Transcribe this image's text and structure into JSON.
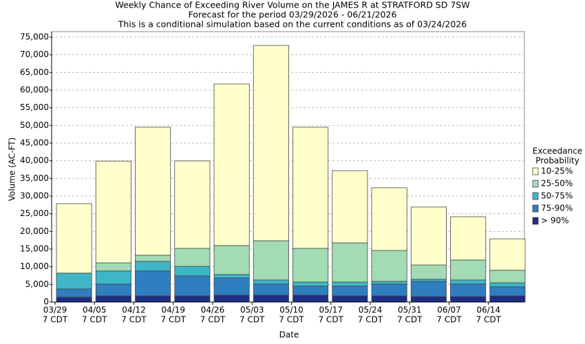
{
  "chart_data": {
    "type": "stacked-bar",
    "title": "Weekly Chance of Exceeding River Volume on the JAMES R at STRATFORD SD 7SW",
    "subtitle": [
      "Forecast for the period 03/29/2026 - 06/21/2026",
      "This is a conditional simulation based on the current conditions as of 03/24/2026"
    ],
    "x_label": "Date",
    "y_label": "Volume (AC-FT)",
    "categories": [
      "03/29",
      "04/05",
      "04/12",
      "04/19",
      "04/26",
      "05/03",
      "05/10",
      "05/17",
      "05/24",
      "05/31",
      "06/07",
      "06/14"
    ],
    "x_tick_sublabel": "7 CDT",
    "legend_title": [
      "Exceedance",
      "Probability"
    ],
    "series": [
      {
        "name": "> 90%",
        "color": "#1f2d86",
        "values": [
          1400,
          1750,
          1750,
          1750,
          1950,
          1950,
          1950,
          1750,
          1750,
          1550,
          1550,
          1750
        ]
      },
      {
        "name": "75-90%",
        "color": "#2f7ec0",
        "values": [
          2300,
          3350,
          7050,
          5650,
          4850,
          3150,
          2550,
          2750,
          3350,
          4300,
          3550,
          2550
        ]
      },
      {
        "name": "50-75%",
        "color": "#3fb6c8",
        "values": [
          4500,
          3700,
          2700,
          2700,
          1000,
          1150,
          1150,
          1150,
          750,
          600,
          1150,
          1150
        ]
      },
      {
        "name": "25-50%",
        "color": "#a3dbb4",
        "values": [
          0,
          2300,
          1750,
          5100,
          8200,
          11100,
          9550,
          11100,
          8750,
          4050,
          5650,
          3550
        ]
      },
      {
        "name": "10-25%",
        "color": "#ffffcc",
        "values": [
          19650,
          28800,
          36250,
          24750,
          45750,
          55300,
          34300,
          20450,
          17750,
          16400,
          12250,
          8900
        ]
      }
    ],
    "ylim": [
      0,
      75000
    ],
    "yticks": [
      0,
      {
        "value": 5000,
        "label": "5,000"
      },
      {
        "value": 10000,
        "label": "10,000"
      },
      {
        "value": 15000,
        "label": "15,000"
      },
      {
        "value": 20000,
        "label": "20,000"
      },
      {
        "value": 25000,
        "label": "25,000"
      },
      {
        "value": 30000,
        "label": "30,000"
      },
      {
        "value": 35000,
        "label": "35,000"
      },
      {
        "value": 40000,
        "label": "40,000"
      },
      {
        "value": 45000,
        "label": "45,000"
      },
      {
        "value": 50000,
        "label": "50,000"
      },
      {
        "value": 55000,
        "label": "55,000"
      },
      {
        "value": 60000,
        "label": "60,000"
      },
      {
        "value": 65000,
        "label": "65,000"
      },
      {
        "value": 70000,
        "label": "70,000"
      },
      {
        "value": 75000,
        "label": "75,000"
      }
    ],
    "grid": true
  }
}
